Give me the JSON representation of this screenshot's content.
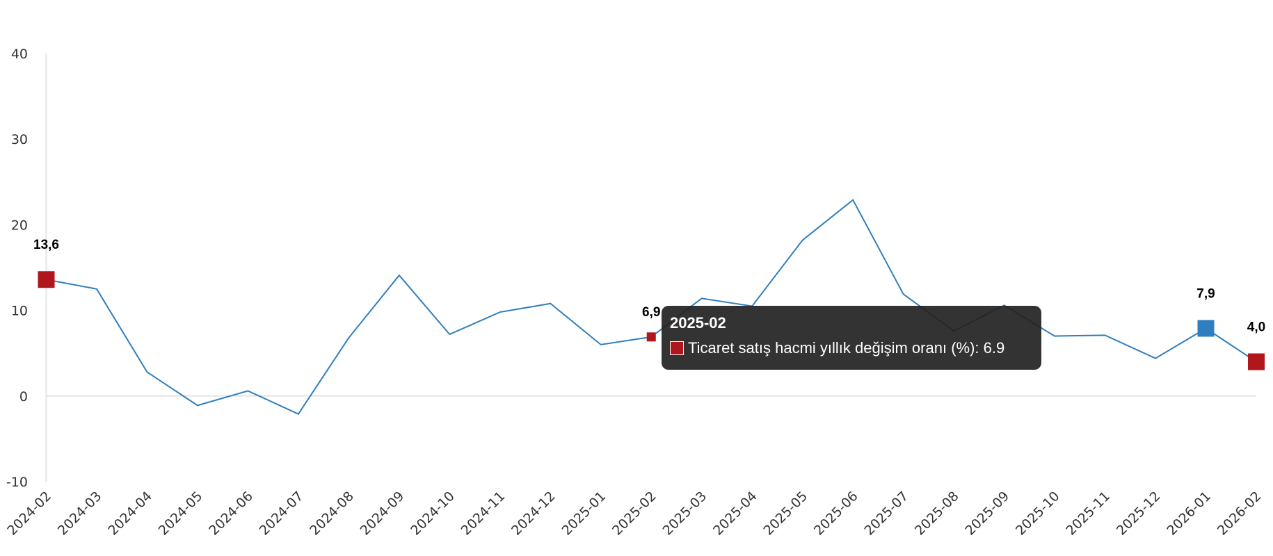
{
  "chart_data": {
    "type": "line",
    "title": "",
    "xlabel": "",
    "ylabel": "",
    "ylim": [
      -10,
      40
    ],
    "yticks": [
      -10,
      0,
      10,
      20,
      30,
      40
    ],
    "grid": false,
    "categories": [
      "2024-02",
      "2024-03",
      "2024-04",
      "2024-05",
      "2024-06",
      "2024-07",
      "2024-08",
      "2024-09",
      "2024-10",
      "2024-11",
      "2024-12",
      "2025-01",
      "2025-02",
      "2025-03",
      "2025-04",
      "2025-05",
      "2025-06",
      "2025-07",
      "2025-08",
      "2025-09",
      "2025-10",
      "2025-11",
      "2025-12",
      "2026-01",
      "2026-02"
    ],
    "series": [
      {
        "name": "Ticaret satış hacmi yıllık değişim oranı (%)",
        "color": "#2f7ebd",
        "values": [
          13.6,
          12.5,
          2.8,
          -1.1,
          0.6,
          -2.1,
          6.8,
          14.1,
          7.2,
          9.8,
          10.8,
          6.0,
          6.9,
          11.4,
          10.5,
          18.2,
          22.9,
          11.9,
          7.6,
          10.6,
          7.0,
          7.1,
          4.4,
          7.9,
          4.0
        ]
      }
    ],
    "highlighted_points": [
      {
        "category": "2024-02",
        "label": "13,6",
        "color": "#b0161c"
      },
      {
        "category": "2025-02",
        "label": "6,9",
        "color": "#b0161c"
      },
      {
        "category": "2026-01",
        "label": "7,9",
        "color": "#2f7ebd"
      },
      {
        "category": "2026-02",
        "label": "4,0",
        "color": "#b0161c"
      }
    ]
  },
  "tooltip": {
    "title": "2025-02",
    "text": "Ticaret satış hacmi yıllık değişim oranı (%): 6.9",
    "color": "#b0161c"
  }
}
